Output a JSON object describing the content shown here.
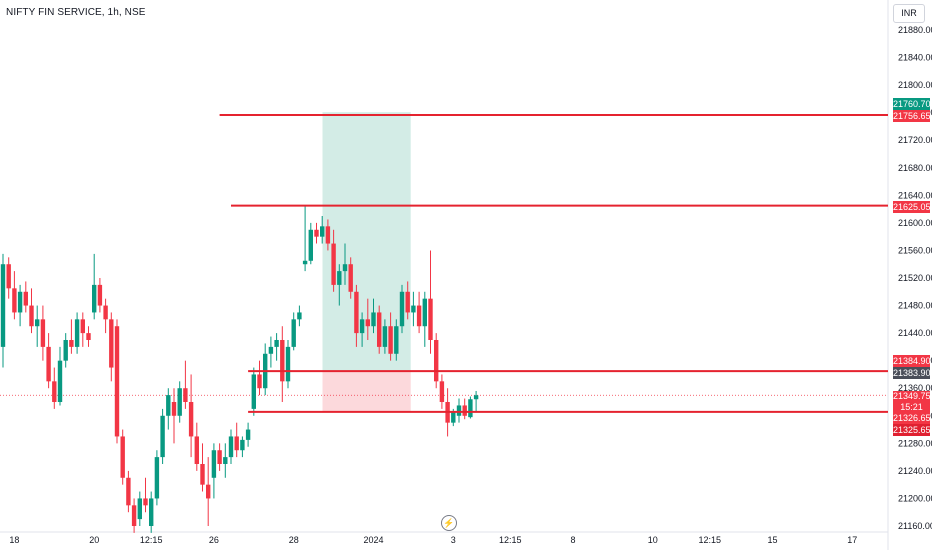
{
  "header": {
    "title": "NIFTY FIN SERVICE, 1h, NSE",
    "currency": "INR"
  },
  "icons": {
    "replay": "lightning-bolt-icon"
  },
  "colors": {
    "up": "#089981",
    "down": "#f23645",
    "level": "#e5232f",
    "target_zone": "#d3ece6",
    "stop_zone": "#fcd9dc"
  },
  "chart_data": {
    "type": "candlestick",
    "title": "NIFTY FIN SERVICE, 1h, NSE",
    "currency": "INR",
    "y_range": [
      21150,
      21910
    ],
    "y_ticks": [
      21160,
      21200,
      21240,
      21280,
      21320,
      21360,
      21400,
      21440,
      21480,
      21520,
      21560,
      21600,
      21640,
      21680,
      21720,
      21760,
      21800,
      21840,
      21880
    ],
    "y_tick_labels": [
      "21160.00",
      "21200.00",
      "21240.00",
      "21280.00",
      "21320.00",
      "21360.00",
      "21400.00",
      "21440.00",
      "21480.00",
      "21520.00",
      "21560.00",
      "21600.00",
      "21640.00",
      "21680.00",
      "21720.00",
      "21760.00",
      "21800.00",
      "21840.00",
      "21880.00"
    ],
    "x_ticks": [
      {
        "label": "18",
        "bar": 2
      },
      {
        "label": "20",
        "bar": 16
      },
      {
        "label": "12:15",
        "bar": 26
      },
      {
        "label": "26",
        "bar": 37
      },
      {
        "label": "28",
        "bar": 51
      },
      {
        "label": "2024",
        "bar": 65
      },
      {
        "label": "3",
        "bar": 79
      },
      {
        "label": "12:15",
        "bar": 89
      },
      {
        "label": "8",
        "bar": 100
      },
      {
        "label": "10",
        "bar": 114
      },
      {
        "label": "12:15",
        "bar": 124
      },
      {
        "label": "15",
        "bar": 135
      },
      {
        "label": "17",
        "bar": 149
      }
    ],
    "candles": [
      {
        "o": 21420,
        "h": 21555,
        "l": 21390,
        "c": 21540
      },
      {
        "o": 21540,
        "h": 21550,
        "l": 21490,
        "c": 21505
      },
      {
        "o": 21505,
        "h": 21530,
        "l": 21460,
        "c": 21470
      },
      {
        "o": 21470,
        "h": 21510,
        "l": 21450,
        "c": 21500
      },
      {
        "o": 21500,
        "h": 21515,
        "l": 21470,
        "c": 21480
      },
      {
        "o": 21480,
        "h": 21505,
        "l": 21440,
        "c": 21450
      },
      {
        "o": 21450,
        "h": 21480,
        "l": 21420,
        "c": 21460
      },
      {
        "o": 21460,
        "h": 21480,
        "l": 21400,
        "c": 21420
      },
      {
        "o": 21420,
        "h": 21440,
        "l": 21360,
        "c": 21370
      },
      {
        "o": 21370,
        "h": 21390,
        "l": 21330,
        "c": 21340
      },
      {
        "o": 21340,
        "h": 21420,
        "l": 21335,
        "c": 21400
      },
      {
        "o": 21400,
        "h": 21440,
        "l": 21390,
        "c": 21430
      },
      {
        "o": 21430,
        "h": 21460,
        "l": 21410,
        "c": 21420
      },
      {
        "o": 21420,
        "h": 21470,
        "l": 21410,
        "c": 21460
      },
      {
        "o": 21460,
        "h": 21470,
        "l": 21420,
        "c": 21440
      },
      {
        "o": 21440,
        "h": 21450,
        "l": 21420,
        "c": 21430
      },
      {
        "o": 21470,
        "h": 21555,
        "l": 21460,
        "c": 21510
      },
      {
        "o": 21510,
        "h": 21520,
        "l": 21470,
        "c": 21480
      },
      {
        "o": 21480,
        "h": 21490,
        "l": 21440,
        "c": 21460
      },
      {
        "o": 21460,
        "h": 21470,
        "l": 21370,
        "c": 21390
      },
      {
        "o": 21450,
        "h": 21460,
        "l": 21280,
        "c": 21290
      },
      {
        "o": 21290,
        "h": 21300,
        "l": 21220,
        "c": 21230
      },
      {
        "o": 21230,
        "h": 21240,
        "l": 21180,
        "c": 21190
      },
      {
        "o": 21190,
        "h": 21200,
        "l": 21150,
        "c": 21160
      },
      {
        "o": 21170,
        "h": 21210,
        "l": 21160,
        "c": 21200
      },
      {
        "o": 21200,
        "h": 21230,
        "l": 21180,
        "c": 21190
      },
      {
        "o": 21160,
        "h": 21210,
        "l": 21150,
        "c": 21200
      },
      {
        "o": 21200,
        "h": 21270,
        "l": 21190,
        "c": 21260
      },
      {
        "o": 21260,
        "h": 21330,
        "l": 21250,
        "c": 21320
      },
      {
        "o": 21320,
        "h": 21360,
        "l": 21300,
        "c": 21350
      },
      {
        "o": 21340,
        "h": 21360,
        "l": 21280,
        "c": 21320
      },
      {
        "o": 21320,
        "h": 21370,
        "l": 21310,
        "c": 21360
      },
      {
        "o": 21360,
        "h": 21400,
        "l": 21330,
        "c": 21340
      },
      {
        "o": 21340,
        "h": 21380,
        "l": 21260,
        "c": 21290
      },
      {
        "o": 21290,
        "h": 21310,
        "l": 21240,
        "c": 21250
      },
      {
        "o": 21250,
        "h": 21280,
        "l": 21210,
        "c": 21220
      },
      {
        "o": 21220,
        "h": 21260,
        "l": 21160,
        "c": 21200
      },
      {
        "o": 21230,
        "h": 21280,
        "l": 21200,
        "c": 21270
      },
      {
        "o": 21270,
        "h": 21280,
        "l": 21240,
        "c": 21250
      },
      {
        "o": 21250,
        "h": 21280,
        "l": 21230,
        "c": 21260
      },
      {
        "o": 21260,
        "h": 21300,
        "l": 21250,
        "c": 21290
      },
      {
        "o": 21290,
        "h": 21310,
        "l": 21260,
        "c": 21270
      },
      {
        "o": 21270,
        "h": 21290,
        "l": 21260,
        "c": 21285
      },
      {
        "o": 21285,
        "h": 21310,
        "l": 21275,
        "c": 21300
      },
      {
        "o": 21330,
        "h": 21390,
        "l": 21320,
        "c": 21380
      },
      {
        "o": 21380,
        "h": 21400,
        "l": 21350,
        "c": 21360
      },
      {
        "o": 21360,
        "h": 21425,
        "l": 21350,
        "c": 21410
      },
      {
        "o": 21410,
        "h": 21435,
        "l": 21390,
        "c": 21420
      },
      {
        "o": 21420,
        "h": 21440,
        "l": 21400,
        "c": 21430
      },
      {
        "o": 21430,
        "h": 21450,
        "l": 21340,
        "c": 21370
      },
      {
        "o": 21370,
        "h": 21430,
        "l": 21360,
        "c": 21420
      },
      {
        "o": 21420,
        "h": 21470,
        "l": 21415,
        "c": 21460
      },
      {
        "o": 21460,
        "h": 21480,
        "l": 21450,
        "c": 21470
      },
      {
        "o": 21540,
        "h": 21625,
        "l": 21530,
        "c": 21545
      },
      {
        "o": 21545,
        "h": 21600,
        "l": 21540,
        "c": 21590
      },
      {
        "o": 21590,
        "h": 21600,
        "l": 21570,
        "c": 21580
      },
      {
        "o": 21580,
        "h": 21610,
        "l": 21570,
        "c": 21595
      },
      {
        "o": 21595,
        "h": 21605,
        "l": 21560,
        "c": 21570
      },
      {
        "o": 21570,
        "h": 21590,
        "l": 21500,
        "c": 21510
      },
      {
        "o": 21510,
        "h": 21540,
        "l": 21480,
        "c": 21530
      },
      {
        "o": 21530,
        "h": 21570,
        "l": 21510,
        "c": 21540
      },
      {
        "o": 21540,
        "h": 21550,
        "l": 21490,
        "c": 21500
      },
      {
        "o": 21500,
        "h": 21510,
        "l": 21420,
        "c": 21440
      },
      {
        "o": 21440,
        "h": 21470,
        "l": 21420,
        "c": 21460
      },
      {
        "o": 21460,
        "h": 21490,
        "l": 21430,
        "c": 21450
      },
      {
        "o": 21450,
        "h": 21490,
        "l": 21440,
        "c": 21470
      },
      {
        "o": 21470,
        "h": 21480,
        "l": 21410,
        "c": 21420
      },
      {
        "o": 21420,
        "h": 21460,
        "l": 21410,
        "c": 21450
      },
      {
        "o": 21450,
        "h": 21470,
        "l": 21400,
        "c": 21410
      },
      {
        "o": 21410,
        "h": 21460,
        "l": 21400,
        "c": 21450
      },
      {
        "o": 21450,
        "h": 21510,
        "l": 21440,
        "c": 21500
      },
      {
        "o": 21500,
        "h": 21515,
        "l": 21460,
        "c": 21470
      },
      {
        "o": 21470,
        "h": 21500,
        "l": 21450,
        "c": 21480
      },
      {
        "o": 21480,
        "h": 21500,
        "l": 21440,
        "c": 21450
      },
      {
        "o": 21450,
        "h": 21500,
        "l": 21420,
        "c": 21490
      },
      {
        "o": 21490,
        "h": 21560,
        "l": 21410,
        "c": 21430
      },
      {
        "o": 21430,
        "h": 21440,
        "l": 21360,
        "c": 21370
      },
      {
        "o": 21370,
        "h": 21380,
        "l": 21330,
        "c": 21340
      },
      {
        "o": 21340,
        "h": 21360,
        "l": 21290,
        "c": 21310
      },
      {
        "o": 21310,
        "h": 21330,
        "l": 21305,
        "c": 21325
      },
      {
        "o": 21320,
        "h": 21345,
        "l": 21310,
        "c": 21335
      },
      {
        "o": 21335,
        "h": 21345,
        "l": 21315,
        "c": 21320
      },
      {
        "o": 21318,
        "h": 21348,
        "l": 21316,
        "c": 21344
      },
      {
        "o": 21344,
        "h": 21356,
        "l": 21325,
        "c": 21349.75
      }
    ],
    "levels": [
      {
        "price": 21756.65,
        "from_bar": 28
      },
      {
        "price": 21625.05,
        "from_bar": 30
      },
      {
        "price": 21384.9,
        "from_bar": 33
      },
      {
        "price": 21325.65,
        "from_bar": 33
      }
    ],
    "position": {
      "entry": 21383.9,
      "target": 21760.7,
      "stop": 21326.65,
      "from_bar": 55,
      "to_bar": 71
    },
    "price_labels": [
      {
        "value": "21760.70",
        "style": "green"
      },
      {
        "value": "21756.65",
        "style": "red"
      },
      {
        "value": "21625.05",
        "style": "red"
      },
      {
        "value": "21384.90",
        "style": "red"
      },
      {
        "value": "21383.90",
        "style": "gray"
      },
      {
        "value": "21349.75",
        "style": "red"
      },
      {
        "value": "21326.65",
        "style": "red"
      },
      {
        "value": "21325.65",
        "style": "dark"
      }
    ],
    "last_price": 21349.75,
    "countdown": "15:21"
  }
}
